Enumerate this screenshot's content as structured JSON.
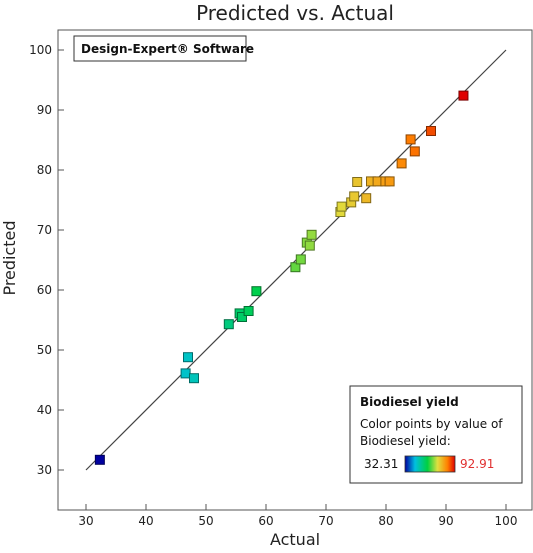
{
  "chart_data": {
    "type": "scatter",
    "title": "Predicted vs. Actual",
    "xlabel": "Actual",
    "ylabel": "Predicted",
    "xlim": [
      30,
      100
    ],
    "ylim": [
      30,
      100
    ],
    "xticks": [
      30,
      40,
      50,
      60,
      70,
      80,
      90,
      100
    ],
    "yticks": [
      30,
      40,
      50,
      60,
      70,
      80,
      90,
      100
    ],
    "diagonal_line": true,
    "brand_label": "Design-Expert® Software",
    "legend": {
      "title": "Biodiesel yield",
      "line1": "Color points by value of",
      "line2": "Biodiesel yield:",
      "min_label": "32.31",
      "max_label": "92.91",
      "min": 32.31,
      "max": 92.91,
      "placement": "bottom-right"
    },
    "colorscale": [
      "#0000a0",
      "#00c0e0",
      "#00d040",
      "#e0e040",
      "#ff8000",
      "#e00000"
    ],
    "points": [
      {
        "x": 32.31,
        "y": 31.7
      },
      {
        "x": 46.6,
        "y": 46.1
      },
      {
        "x": 47.0,
        "y": 48.8
      },
      {
        "x": 48.0,
        "y": 45.3
      },
      {
        "x": 53.8,
        "y": 54.3
      },
      {
        "x": 55.6,
        "y": 56.1
      },
      {
        "x": 56.0,
        "y": 55.5
      },
      {
        "x": 57.1,
        "y": 56.5
      },
      {
        "x": 58.4,
        "y": 59.8
      },
      {
        "x": 64.9,
        "y": 63.8
      },
      {
        "x": 65.8,
        "y": 65.1
      },
      {
        "x": 66.8,
        "y": 67.9
      },
      {
        "x": 67.3,
        "y": 67.4
      },
      {
        "x": 67.6,
        "y": 69.2
      },
      {
        "x": 72.4,
        "y": 73.0
      },
      {
        "x": 72.6,
        "y": 73.9
      },
      {
        "x": 74.2,
        "y": 74.6
      },
      {
        "x": 74.7,
        "y": 75.6
      },
      {
        "x": 75.2,
        "y": 78.0
      },
      {
        "x": 76.7,
        "y": 75.3
      },
      {
        "x": 77.5,
        "y": 78.1
      },
      {
        "x": 78.6,
        "y": 78.1
      },
      {
        "x": 79.9,
        "y": 78.1
      },
      {
        "x": 80.6,
        "y": 78.1
      },
      {
        "x": 82.6,
        "y": 81.1
      },
      {
        "x": 84.1,
        "y": 85.1
      },
      {
        "x": 84.8,
        "y": 83.1
      },
      {
        "x": 87.5,
        "y": 86.5
      },
      {
        "x": 92.91,
        "y": 92.4
      }
    ]
  }
}
